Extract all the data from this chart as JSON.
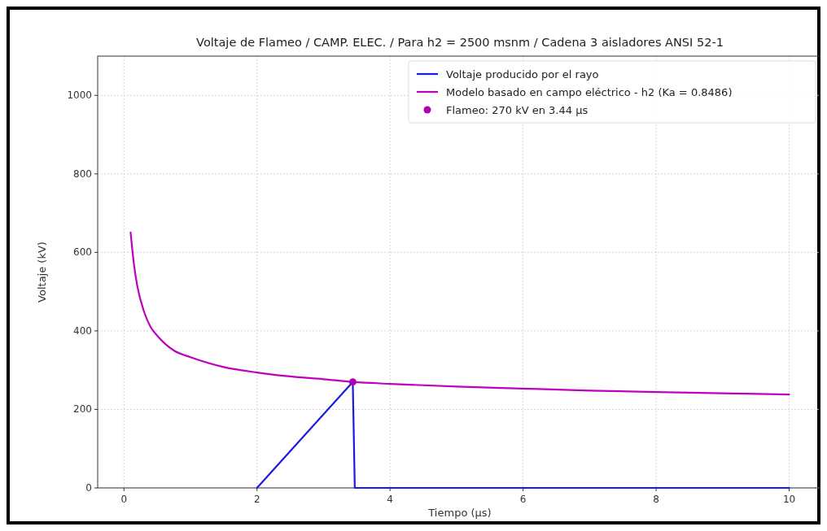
{
  "chart_data": {
    "type": "line",
    "title": "Voltaje de Flameo / CAMP. ELEC. / Para h2 = 2500 msnm / Cadena 3 aisladores ANSI 52-1",
    "xlabel": "Tiempo (μs)",
    "ylabel": "Voltaje (kV)",
    "xlim": [
      -0.395,
      10.495
    ],
    "xticks": [
      0,
      2,
      4,
      6,
      8,
      10
    ],
    "ylim": [
      0,
      1100
    ],
    "yticks": [
      0,
      200,
      400,
      600,
      800,
      1000
    ],
    "grid": true,
    "legend": "top right",
    "line_style": "solid",
    "series": [
      {
        "name": "Voltaje producido por el rayo",
        "color": "#1a1ae6",
        "x": [
          2,
          3.44,
          3.47,
          10
        ],
        "values": [
          0,
          270,
          0,
          0
        ]
      },
      {
        "name": "Modelo basado en campo eléctrico - h2 (Ka = 0.8486)",
        "color": "#c000c0",
        "x": [
          0.1,
          0.15,
          0.2,
          0.3,
          0.4,
          0.5,
          0.75,
          1,
          1.5,
          2,
          2.5,
          3,
          3.44,
          4,
          5,
          6,
          7,
          8,
          9,
          10
        ],
        "values": [
          651,
          570,
          515,
          450,
          410,
          388,
          350,
          333,
          308,
          294,
          284,
          277,
          270,
          265,
          258,
          253,
          248,
          244,
          241,
          238
        ]
      },
      {
        "name": "Flameo: 270 kV en 3.44 μs",
        "type": "scatter",
        "marker": "circle",
        "color": "#b000b0",
        "x": [
          3.44
        ],
        "values": [
          270
        ]
      }
    ]
  }
}
